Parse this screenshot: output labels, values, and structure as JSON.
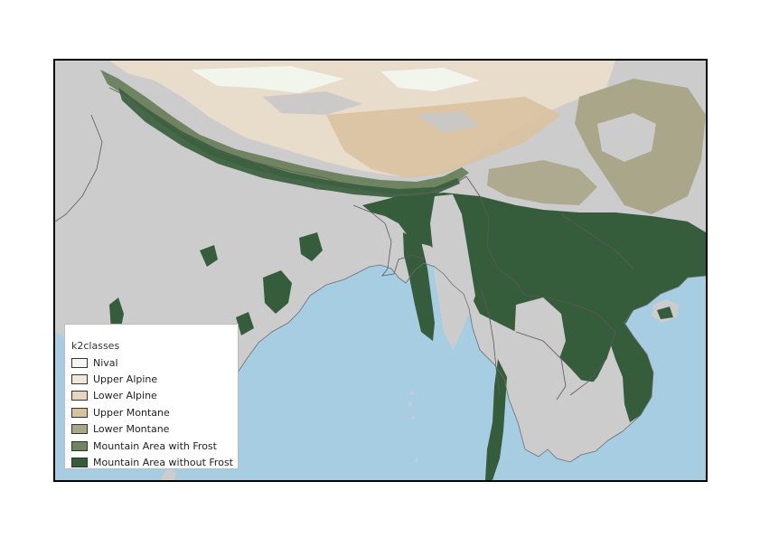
{
  "legend": {
    "title": "k2classes",
    "items": [
      {
        "label": "Nival",
        "color": "#f3f7ef"
      },
      {
        "label": "Upper Alpine",
        "color": "#efe7dc"
      },
      {
        "label": "Lower Alpine",
        "color": "#e6d6c1"
      },
      {
        "label": "Upper Montane",
        "color": "#d9c19e"
      },
      {
        "label": "Lower Montane",
        "color": "#aaa68a"
      },
      {
        "label": "Mountain Area with Frost",
        "color": "#6f8562"
      },
      {
        "label": "Mountain Area without Frost",
        "color": "#365d3b"
      }
    ]
  },
  "colors": {
    "ocean": "#a6cde2",
    "land": "#cccccc",
    "border": "#5a5a5a"
  }
}
